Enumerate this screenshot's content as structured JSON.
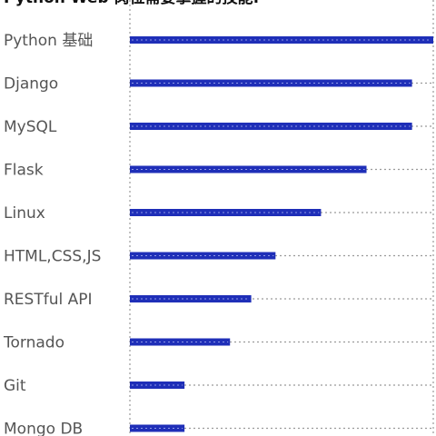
{
  "chart_data": {
    "type": "bar",
    "orientation": "horizontal",
    "title": "Python Web 岗位需要掌握的技能:",
    "categories": [
      "Python 基础",
      "Django",
      "MySQL",
      "Flask",
      "Linux",
      "HTML,CSS,JS",
      "RESTful API",
      "Tornado",
      "Git",
      "Mongo DB"
    ],
    "values": [
      100,
      93,
      93,
      78,
      63,
      48,
      40,
      33,
      18,
      18
    ],
    "xlim": [
      0,
      100
    ],
    "grid": true,
    "bar_color": "#1f2fb8",
    "grid_color": "#9a9a9a",
    "label_color": "#555555"
  }
}
